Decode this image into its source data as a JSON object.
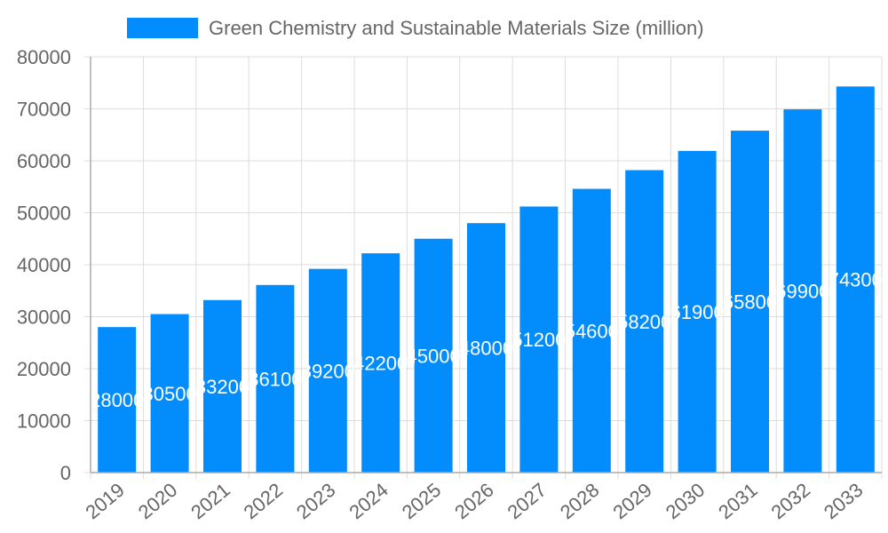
{
  "chart_data": {
    "type": "bar",
    "categories": [
      "2019",
      "2020",
      "2021",
      "2022",
      "2023",
      "2024",
      "2025",
      "2026",
      "2027",
      "2028",
      "2029",
      "2030",
      "2031",
      "2032",
      "2033"
    ],
    "series": [
      {
        "name": "Green Chemistry and Sustainable Materials Size (million)",
        "values": [
          28000,
          30500,
          33200,
          36100,
          39200,
          42200,
          45000,
          48000,
          51200,
          54600,
          58200,
          61900,
          65800,
          69900,
          74300
        ]
      }
    ],
    "ylim": [
      0,
      80000
    ],
    "yticks": [
      0,
      10000,
      20000,
      30000,
      40000,
      50000,
      60000,
      70000,
      80000
    ],
    "grid": true,
    "legend": "top",
    "data_labels": true,
    "colors": {
      "bar": "#038cfc",
      "label": "#ffffff",
      "grid": "#dddddd",
      "text": "#666666"
    }
  }
}
